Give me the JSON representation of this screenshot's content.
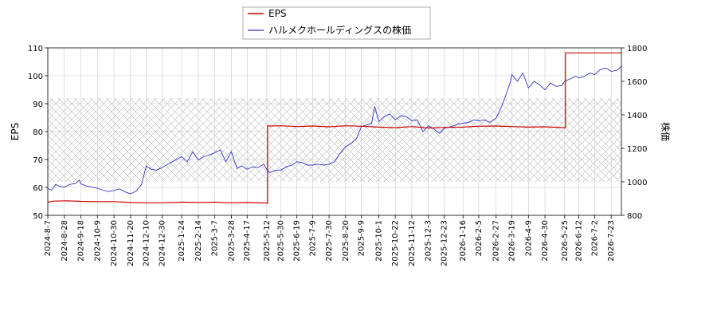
{
  "chart_data": {
    "type": "line",
    "title": "",
    "xlabel": "",
    "ylabel_left": "EPS",
    "ylabel_right": "株価",
    "ylim_left": [
      50,
      110
    ],
    "ylim_right": [
      800,
      1800
    ],
    "yticks_left": [
      50,
      60,
      70,
      80,
      90,
      100,
      110
    ],
    "yticks_right": [
      800,
      1000,
      1200,
      1400,
      1600,
      1800
    ],
    "xlim": [
      "2024-08-07",
      "2026-08-05"
    ],
    "xticks": [
      "2024-8-7",
      "2024-8-28",
      "2024-9-18",
      "2024-10-9",
      "2024-10-30",
      "2024-11-20",
      "2024-12-10",
      "2024-12-30",
      "2025-1-24",
      "2025-2-14",
      "2025-3-7",
      "2025-3-28",
      "2025-4-17",
      "2025-5-12",
      "2025-5-30",
      "2025-6-19",
      "2025-7-9",
      "2025-7-30",
      "2025-8-20",
      "2025-9-9",
      "2025-10-1",
      "2025-10-22",
      "2025-11-12",
      "2025-12-3",
      "2025-12-23",
      "2026-1-16",
      "2026-2-5",
      "2026-2-27",
      "2026-3-19",
      "2026-4-9",
      "2026-4-30",
      "2026-5-25",
      "2026-6-12",
      "2026-7-2",
      "2026-7-23"
    ],
    "hatched_band_right": [
      1000,
      1500
    ],
    "grid": true,
    "legend_position": "top-center",
    "colors": {
      "eps": "#cc0000",
      "price": "#3333cc",
      "hatch": "#bbbbbb",
      "grid": "#cccccc"
    },
    "series": [
      {
        "name": "EPS",
        "axis": "left",
        "x": [
          "2024-08-07",
          "2024-08-14",
          "2024-09-01",
          "2024-09-18",
          "2024-10-09",
          "2024-10-30",
          "2024-11-20",
          "2024-12-10",
          "2024-12-30",
          "2025-01-24",
          "2025-02-14",
          "2025-03-07",
          "2025-03-28",
          "2025-04-17",
          "2025-05-12",
          "2025-05-13",
          "2025-05-30",
          "2025-06-19",
          "2025-07-09",
          "2025-07-30",
          "2025-08-20",
          "2025-09-09",
          "2025-10-01",
          "2025-10-22",
          "2025-11-12",
          "2025-12-03",
          "2025-12-23",
          "2026-01-16",
          "2026-02-05",
          "2026-02-27",
          "2026-03-19",
          "2026-04-09",
          "2026-04-30",
          "2026-05-25",
          "2026-05-26",
          "2026-06-12",
          "2026-07-02",
          "2026-07-23",
          "2026-08-05"
        ],
        "y": [
          54.7,
          55.1,
          55.2,
          55.0,
          54.9,
          54.9,
          54.6,
          54.5,
          54.5,
          54.7,
          54.6,
          54.7,
          54.5,
          54.6,
          54.4,
          82.0,
          82.1,
          81.8,
          82.0,
          81.7,
          82.1,
          81.9,
          81.6,
          81.4,
          81.8,
          81.3,
          81.5,
          81.6,
          81.9,
          82.0,
          81.8,
          81.6,
          81.7,
          81.4,
          108.2,
          108.2,
          108.2,
          108.2,
          108.2
        ]
      },
      {
        "name": "ハルメクホールディングスの株価",
        "axis": "right",
        "x": [
          "2024-08-07",
          "2024-08-12",
          "2024-08-17",
          "2024-08-21",
          "2024-08-28",
          "2024-09-04",
          "2024-09-11",
          "2024-09-16",
          "2024-09-18",
          "2024-09-25",
          "2024-10-02",
          "2024-10-09",
          "2024-10-16",
          "2024-10-23",
          "2024-10-30",
          "2024-11-06",
          "2024-11-13",
          "2024-11-20",
          "2024-11-27",
          "2024-12-04",
          "2024-12-10",
          "2024-12-16",
          "2024-12-23",
          "2024-12-30",
          "2025-01-08",
          "2025-01-16",
          "2025-01-24",
          "2025-01-31",
          "2025-02-07",
          "2025-02-14",
          "2025-02-21",
          "2025-02-28",
          "2025-03-07",
          "2025-03-14",
          "2025-03-21",
          "2025-03-28",
          "2025-04-04",
          "2025-04-10",
          "2025-04-17",
          "2025-04-24",
          "2025-05-01",
          "2025-05-08",
          "2025-05-12",
          "2025-05-16",
          "2025-05-23",
          "2025-05-30",
          "2025-06-06",
          "2025-06-13",
          "2025-06-19",
          "2025-06-26",
          "2025-07-02",
          "2025-07-09",
          "2025-07-16",
          "2025-07-23",
          "2025-07-30",
          "2025-08-06",
          "2025-08-13",
          "2025-08-20",
          "2025-08-27",
          "2025-09-03",
          "2025-09-09",
          "2025-09-16",
          "2025-09-22",
          "2025-09-26",
          "2025-10-01",
          "2025-10-08",
          "2025-10-15",
          "2025-10-22",
          "2025-10-29",
          "2025-11-05",
          "2025-11-12",
          "2025-11-19",
          "2025-11-26",
          "2025-12-03",
          "2025-12-10",
          "2025-12-17",
          "2025-12-23",
          "2026-01-05",
          "2026-01-09",
          "2026-01-16",
          "2026-01-23",
          "2026-01-30",
          "2026-02-05",
          "2026-02-12",
          "2026-02-19",
          "2026-02-27",
          "2026-03-06",
          "2026-03-13",
          "2026-03-17",
          "2026-03-19",
          "2026-03-26",
          "2026-04-02",
          "2026-04-09",
          "2026-04-16",
          "2026-04-23",
          "2026-04-30",
          "2026-05-07",
          "2026-05-14",
          "2026-05-21",
          "2026-05-25",
          "2026-06-01",
          "2026-06-08",
          "2026-06-12",
          "2026-06-19",
          "2026-06-26",
          "2026-07-02",
          "2026-07-09",
          "2026-07-16",
          "2026-07-23",
          "2026-07-30",
          "2026-08-05"
        ],
        "y": [
          960,
          950,
          985,
          975,
          968,
          985,
          990,
          1010,
          988,
          975,
          968,
          962,
          950,
          942,
          948,
          958,
          940,
          928,
          945,
          985,
          1095,
          1075,
          1070,
          1085,
          1110,
          1130,
          1150,
          1120,
          1180,
          1130,
          1150,
          1160,
          1175,
          1190,
          1120,
          1180,
          1080,
          1095,
          1075,
          1090,
          1085,
          1105,
          1075,
          1055,
          1070,
          1070,
          1090,
          1100,
          1120,
          1115,
          1100,
          1100,
          1105,
          1100,
          1105,
          1120,
          1170,
          1210,
          1230,
          1260,
          1330,
          1340,
          1350,
          1450,
          1360,
          1390,
          1405,
          1370,
          1395,
          1390,
          1365,
          1370,
          1300,
          1335,
          1315,
          1290,
          1320,
          1335,
          1345,
          1350,
          1355,
          1370,
          1365,
          1370,
          1355,
          1380,
          1450,
          1540,
          1595,
          1640,
          1600,
          1650,
          1560,
          1600,
          1580,
          1550,
          1590,
          1570,
          1575,
          1600,
          1615,
          1630,
          1620,
          1630,
          1650,
          1640,
          1670,
          1680,
          1660,
          1665,
          1690
        ]
      }
    ]
  }
}
